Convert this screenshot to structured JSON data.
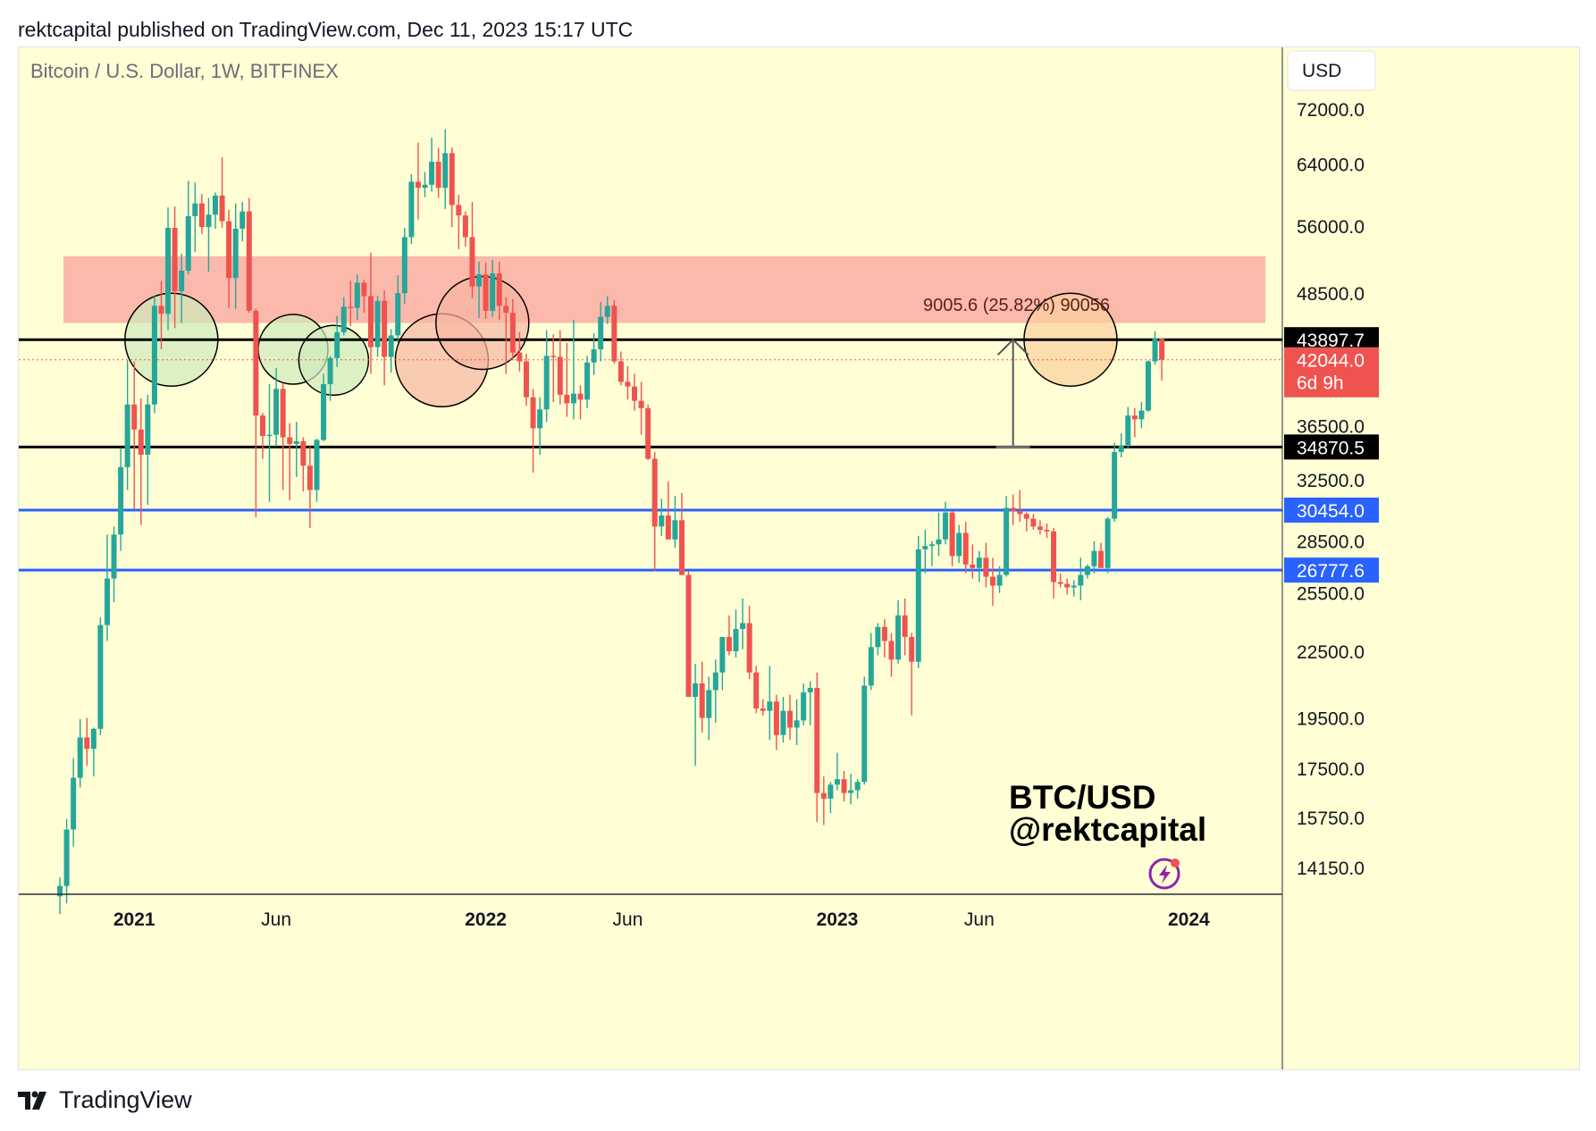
{
  "header": {
    "published_text": "rektcapital published on TradingView.com, Dec 11, 2023 15:17 UTC"
  },
  "footer": {
    "brand": "TradingView",
    "logo_icon": "tradingview-logo-icon"
  },
  "colors": {
    "background": "#fffed5",
    "up": "#26a69a",
    "down": "#ef5350",
    "resistance_zone": "#f9a8a0",
    "support_line_black": "#000000",
    "support_line_blue": "#2962ff",
    "circle_green": "#cdeabb",
    "circle_red": "#f7b6a3",
    "circle_orange": "#f9cf9c",
    "price_line": "#ef5350"
  },
  "chart_data": {
    "type": "candlestick",
    "title": "Bitcoin / U.S. Dollar, 1W, BITFINEX",
    "currency": "USD",
    "scale": "log",
    "ylim": [
      13400,
      82000
    ],
    "x_tick_labels": [
      "2021",
      "Jun",
      "2022",
      "Jun",
      "2023",
      "Jun",
      "2024"
    ],
    "y_tick_labels": [
      {
        "value": 72000,
        "label": "72000.0"
      },
      {
        "value": 64000,
        "label": "64000.0"
      },
      {
        "value": 56000,
        "label": "56000.0"
      },
      {
        "value": 48500,
        "label": "48500.0"
      },
      {
        "value": 36500,
        "label": "36500.0"
      },
      {
        "value": 32500,
        "label": "32500.0"
      },
      {
        "value": 28500,
        "label": "28500.0"
      },
      {
        "value": 25500,
        "label": "25500.0"
      },
      {
        "value": 22500,
        "label": "22500.0"
      },
      {
        "value": 19500,
        "label": "19500.0"
      },
      {
        "value": 17500,
        "label": "17500.0"
      },
      {
        "value": 15750,
        "label": "15750.0"
      },
      {
        "value": 14150,
        "label": "14150.0"
      }
    ],
    "horizontal_levels": [
      {
        "value": 43897.7,
        "label": "43897.7",
        "color": "#000000"
      },
      {
        "value": 34870.5,
        "label": "34870.5",
        "color": "#000000"
      },
      {
        "value": 30454.0,
        "label": "30454.0",
        "color": "#2962ff"
      },
      {
        "value": 26777.6,
        "label": "26777.6",
        "color": "#2962ff"
      }
    ],
    "current_price": {
      "value": 42044.0,
      "label": "42044.0",
      "countdown": "6d 9h"
    },
    "resistance_zone": {
      "low": 45500,
      "high": 52500
    },
    "measure": {
      "label": "9005.6 (25.82%) 90056",
      "date_index": 141,
      "from": 34870.5,
      "to": 43897.7
    },
    "watermark": [
      "BTC/USD",
      "@rektcapital"
    ],
    "circles": [
      {
        "date_index": 16.5,
        "price": 43897.7,
        "kind": "green"
      },
      {
        "date_index": 34.5,
        "price": 43000,
        "kind": "green"
      },
      {
        "date_index": 40.5,
        "price": 42000,
        "kind": "green"
      },
      {
        "date_index": 56.5,
        "price": 42000,
        "kind": "red"
      },
      {
        "date_index": 62.5,
        "price": 45500,
        "kind": "red"
      },
      {
        "date_index": 149.5,
        "price": 43897.7,
        "kind": "orange"
      }
    ],
    "x_ticks": [
      {
        "date_index": 11,
        "label": "2021",
        "bold": true
      },
      {
        "date_index": 32,
        "label": "Jun",
        "bold": false
      },
      {
        "date_index": 63,
        "label": "2022",
        "bold": true
      },
      {
        "date_index": 84,
        "label": "Jun",
        "bold": false
      },
      {
        "date_index": 115,
        "label": "2023",
        "bold": true
      },
      {
        "date_index": 136,
        "label": "Jun",
        "bold": false
      },
      {
        "date_index": 167,
        "label": "2024",
        "bold": true
      }
    ],
    "candles": [
      [
        13300,
        13850,
        12800,
        13600
      ],
      [
        13600,
        15700,
        13100,
        15350
      ],
      [
        15350,
        17900,
        14800,
        17150
      ],
      [
        17150,
        19450,
        16800,
        18700
      ],
      [
        18700,
        19500,
        17600,
        18250
      ],
      [
        18250,
        19100,
        17200,
        19050
      ],
      [
        19050,
        24200,
        18800,
        23800
      ],
      [
        23800,
        28900,
        23000,
        26300
      ],
      [
        26300,
        29400,
        25000,
        28900
      ],
      [
        28900,
        34800,
        27900,
        33400
      ],
      [
        33400,
        42000,
        31800,
        38200
      ],
      [
        38200,
        41900,
        30500,
        36200
      ],
      [
        36200,
        38700,
        29500,
        34300
      ],
      [
        34300,
        39000,
        30800,
        38200
      ],
      [
        38200,
        48200,
        37500,
        47200
      ],
      [
        47200,
        49800,
        43000,
        46400
      ],
      [
        46400,
        58300,
        44800,
        55800
      ],
      [
        55800,
        58400,
        45000,
        48700
      ],
      [
        48700,
        52800,
        45500,
        50900
      ],
      [
        50900,
        61700,
        50500,
        57200
      ],
      [
        57200,
        61500,
        53000,
        58800
      ],
      [
        58800,
        60000,
        55100,
        55900
      ],
      [
        55900,
        59500,
        50800,
        57400
      ],
      [
        57400,
        60200,
        55700,
        59800
      ],
      [
        59800,
        64900,
        55800,
        56600
      ],
      [
        56600,
        58000,
        47000,
        50100
      ],
      [
        50100,
        58800,
        46900,
        55700
      ],
      [
        55700,
        59000,
        54200,
        57800
      ],
      [
        57800,
        59500,
        46500,
        46700
      ],
      [
        46700,
        46900,
        30000,
        37300
      ],
      [
        37300,
        37500,
        34000,
        35700
      ],
      [
        35700,
        39900,
        31000,
        35800
      ],
      [
        35800,
        41300,
        34900,
        39500
      ],
      [
        39500,
        40000,
        31800,
        35600
      ],
      [
        35600,
        36700,
        31100,
        35100
      ],
      [
        35100,
        36800,
        32700,
        35300
      ],
      [
        35300,
        35600,
        31700,
        33500
      ],
      [
        33500,
        34900,
        29300,
        31800
      ],
      [
        31800,
        35500,
        31000,
        35400
      ],
      [
        35400,
        40800,
        35300,
        39900
      ],
      [
        39900,
        42400,
        38500,
        42200
      ],
      [
        42200,
        46200,
        41400,
        44600
      ],
      [
        44600,
        48100,
        44300,
        47100
      ],
      [
        47100,
        49800,
        45200,
        47000
      ],
      [
        47000,
        50500,
        45800,
        49600
      ],
      [
        49600,
        49900,
        46500,
        48200
      ],
      [
        48200,
        52900,
        40800,
        43200
      ],
      [
        43200,
        48200,
        42300,
        47700
      ],
      [
        47700,
        48800,
        39800,
        42300
      ],
      [
        42300,
        44900,
        40900,
        44300
      ],
      [
        44300,
        50400,
        43600,
        48500
      ],
      [
        48500,
        55800,
        47400,
        54700
      ],
      [
        54700,
        62600,
        53900,
        61600
      ],
      [
        61600,
        67000,
        56800,
        60800
      ],
      [
        60800,
        62900,
        59600,
        61200
      ],
      [
        61200,
        67700,
        60300,
        64300
      ],
      [
        64300,
        66200,
        59500,
        60800
      ],
      [
        60800,
        68900,
        58100,
        65500
      ],
      [
        65500,
        66300,
        55900,
        58600
      ],
      [
        58600,
        59900,
        53300,
        57300
      ],
      [
        57300,
        57800,
        53600,
        54700
      ],
      [
        54700,
        59000,
        48000,
        49200
      ],
      [
        49200,
        51900,
        46000,
        50500
      ],
      [
        50500,
        51800,
        45900,
        46700
      ],
      [
        46700,
        52100,
        46100,
        50600
      ],
      [
        50600,
        51900,
        45800,
        47200
      ],
      [
        47200,
        48100,
        40800,
        46500
      ],
      [
        46500,
        47900,
        42000,
        42700
      ],
      [
        42700,
        44600,
        41000,
        41900
      ],
      [
        41900,
        42600,
        38100,
        38800
      ],
      [
        38800,
        39500,
        33000,
        36300
      ],
      [
        36300,
        38800,
        34300,
        37800
      ],
      [
        37800,
        44800,
        36800,
        42400
      ],
      [
        42400,
        44400,
        38400,
        42300
      ],
      [
        42300,
        44800,
        38200,
        39000
      ],
      [
        39000,
        43600,
        37200,
        38300
      ],
      [
        38300,
        45800,
        37000,
        39100
      ],
      [
        39100,
        39800,
        37000,
        38600
      ],
      [
        38600,
        42400,
        37900,
        41800
      ],
      [
        41800,
        44500,
        40700,
        43000
      ],
      [
        43000,
        47600,
        41900,
        46100
      ],
      [
        46100,
        48200,
        45400,
        47200
      ],
      [
        47200,
        47800,
        41700,
        41900
      ],
      [
        41900,
        42800,
        39800,
        40100
      ],
      [
        40100,
        41500,
        38600,
        39700
      ],
      [
        39700,
        40800,
        37700,
        38500
      ],
      [
        38500,
        40100,
        35800,
        37900
      ],
      [
        37900,
        38200,
        33900,
        34000
      ],
      [
        34000,
        34500,
        26700,
        29400
      ],
      [
        29400,
        31200,
        28800,
        30100
      ],
      [
        30100,
        32400,
        28700,
        28600
      ],
      [
        28600,
        31400,
        28100,
        29800
      ],
      [
        29800,
        31600,
        26600,
        26500
      ],
      [
        26500,
        26700,
        20800,
        20400
      ],
      [
        20400,
        21900,
        17600,
        21000
      ],
      [
        21000,
        22000,
        18900,
        19500
      ],
      [
        19500,
        21300,
        18600,
        20700
      ],
      [
        20700,
        22100,
        19300,
        21500
      ],
      [
        21500,
        23200,
        20700,
        23200
      ],
      [
        23200,
        24300,
        22300,
        22500
      ],
      [
        22500,
        24600,
        22200,
        23600
      ],
      [
        23600,
        25200,
        22600,
        23900
      ],
      [
        23900,
        24800,
        21200,
        21500
      ],
      [
        21500,
        21800,
        19700,
        19900
      ],
      [
        19900,
        20300,
        19600,
        19800
      ],
      [
        19800,
        21800,
        18600,
        20200
      ],
      [
        20200,
        20500,
        18200,
        18800
      ],
      [
        18800,
        20400,
        18500,
        19800
      ],
      [
        19800,
        20500,
        18600,
        19100
      ],
      [
        19100,
        20300,
        18400,
        19400
      ],
      [
        19400,
        21000,
        19200,
        20600
      ],
      [
        20600,
        21100,
        19200,
        20800
      ],
      [
        20800,
        21500,
        15600,
        16600
      ],
      [
        16600,
        17200,
        15500,
        16400
      ],
      [
        16400,
        17000,
        15900,
        16900
      ],
      [
        16900,
        18100,
        16700,
        17100
      ],
      [
        17100,
        17400,
        16300,
        16600
      ],
      [
        16600,
        17300,
        16200,
        16700
      ],
      [
        16700,
        17100,
        16400,
        17000
      ],
      [
        17000,
        21300,
        16900,
        20900
      ],
      [
        20900,
        23400,
        20700,
        22700
      ],
      [
        22700,
        23900,
        22300,
        23700
      ],
      [
        23700,
        24100,
        22200,
        23000
      ],
      [
        23000,
        23400,
        21300,
        22100
      ],
      [
        22100,
        25100,
        21900,
        24300
      ],
      [
        24300,
        25200,
        22300,
        23200
      ],
      [
        23200,
        23400,
        19600,
        22000
      ],
      [
        22000,
        28800,
        21700,
        28000
      ],
      [
        28000,
        29200,
        26600,
        28200
      ],
      [
        28200,
        28500,
        27000,
        28300
      ],
      [
        28300,
        30300,
        27600,
        28600
      ],
      [
        28600,
        31000,
        28300,
        30300
      ],
      [
        30300,
        30400,
        27000,
        27600
      ],
      [
        27600,
        29500,
        27200,
        29000
      ],
      [
        29000,
        29700,
        26600,
        27100
      ],
      [
        27100,
        28300,
        26300,
        26900
      ],
      [
        26900,
        27900,
        26100,
        27500
      ],
      [
        27500,
        28400,
        25800,
        26400
      ],
      [
        26400,
        27500,
        24800,
        25900
      ],
      [
        25900,
        27000,
        25500,
        26500
      ],
      [
        26500,
        31400,
        26400,
        30600
      ],
      [
        30600,
        31500,
        29500,
        30400
      ],
      [
        30400,
        31800,
        29700,
        30200
      ],
      [
        30200,
        30300,
        29100,
        29900
      ],
      [
        29900,
        30200,
        29200,
        29400
      ],
      [
        29400,
        29800,
        28900,
        29200
      ],
      [
        29200,
        29600,
        28700,
        29100
      ],
      [
        29100,
        29300,
        25200,
        26100
      ],
      [
        26100,
        26600,
        25800,
        26000
      ],
      [
        26000,
        26300,
        25400,
        25800
      ],
      [
        25800,
        26200,
        25300,
        25900
      ],
      [
        25900,
        27500,
        25100,
        26500
      ],
      [
        26500,
        27100,
        26300,
        27000
      ],
      [
        27000,
        28500,
        26600,
        27900
      ],
      [
        27900,
        28400,
        27200,
        26900
      ],
      [
        26900,
        30000,
        26600,
        29900
      ],
      [
        29900,
        35200,
        29700,
        34500
      ],
      [
        34500,
        35900,
        34100,
        35000
      ],
      [
        35000,
        38000,
        34800,
        37300
      ],
      [
        37300,
        37900,
        35600,
        37000
      ],
      [
        37000,
        38400,
        36300,
        37700
      ],
      [
        37700,
        42000,
        37600,
        41900
      ],
      [
        41900,
        44700,
        41600,
        44000
      ],
      [
        44000,
        44000,
        40200,
        42044
      ]
    ]
  }
}
